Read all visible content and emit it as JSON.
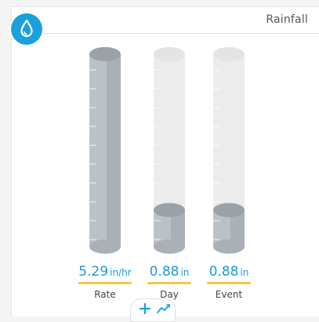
{
  "card": {
    "title": "Rainfall",
    "icon": "water-drop-icon"
  },
  "gauges": [
    {
      "key": "rate",
      "value": "5.29",
      "unit": "in/hr",
      "label": "Rate",
      "fill_fraction": 1.0
    },
    {
      "key": "day",
      "value": "0.88",
      "unit": "in",
      "label": "Day",
      "fill_fraction": 0.19
    },
    {
      "key": "event",
      "value": "0.88",
      "unit": "in",
      "label": "Event",
      "fill_fraction": 0.19
    }
  ],
  "footer": {
    "icons": [
      "add-icon",
      "trend-chart-icon"
    ]
  },
  "colors": {
    "accent": "#1aa0dc",
    "value_text": "#1e9ad6",
    "underline": "#f2c94c",
    "tube_empty": "#ececec",
    "tube_fill": "#bcc1c7"
  }
}
